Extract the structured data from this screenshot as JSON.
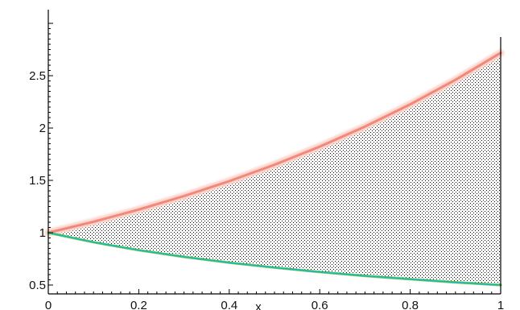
{
  "chart_data": {
    "type": "area",
    "title": "",
    "xlabel": "x",
    "ylabel": "",
    "xlim": [
      0,
      1
    ],
    "ylim": [
      0.5,
      3.0
    ],
    "x_ticks": [
      0,
      0.2,
      0.4,
      0.6,
      0.8,
      1
    ],
    "x_tick_labels": [
      "0",
      "0.2",
      "0.4",
      "0.6",
      "0.8",
      "1"
    ],
    "y_ticks": [
      0.5,
      1,
      1.5,
      2,
      2.5
    ],
    "y_tick_labels": [
      "0.5",
      "1",
      "1.5",
      "2",
      "2.5"
    ],
    "grid": false,
    "fill": "stippled region between the two curves",
    "series": [
      {
        "color": "#f08070",
        "x": [
          0,
          0.1,
          0.2,
          0.3,
          0.4,
          0.5,
          0.6,
          0.7,
          0.8,
          0.9,
          1.0
        ],
        "values": [
          1.0,
          1.105,
          1.221,
          1.35,
          1.492,
          1.649,
          1.822,
          2.014,
          2.226,
          2.46,
          2.718
        ]
      },
      {
        "color": "#20b8b0",
        "x": [
          0,
          0.1,
          0.2,
          0.3,
          0.4,
          0.5,
          0.6,
          0.7,
          0.8,
          0.9,
          1.0
        ],
        "values": [
          1.0,
          0.909,
          0.833,
          0.769,
          0.714,
          0.667,
          0.625,
          0.588,
          0.556,
          0.526,
          0.5
        ]
      }
    ],
    "colors": {
      "axis": "#000000",
      "stipple": "#000000",
      "upper": "#f08070",
      "lower": "#20b8b0",
      "lower_edge": "#8fd04a"
    }
  }
}
